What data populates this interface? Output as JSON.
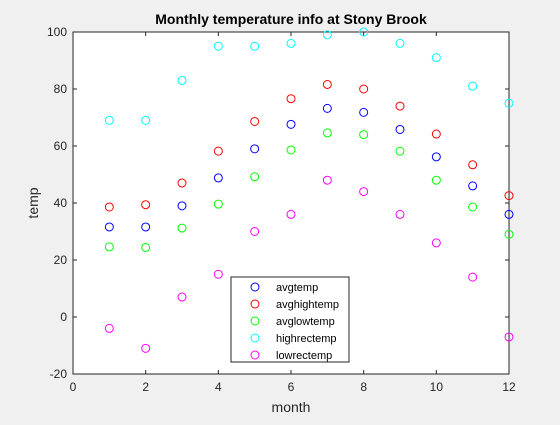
{
  "chart_data": {
    "type": "scatter",
    "title": "Monthly temperature info at Stony Brook",
    "xlabel": "month",
    "ylabel": "temp",
    "xlim": [
      0,
      12
    ],
    "ylim": [
      -20,
      100
    ],
    "xticks": [
      0,
      2,
      4,
      6,
      8,
      10,
      12
    ],
    "yticks": [
      -20,
      0,
      20,
      40,
      60,
      80,
      100
    ],
    "grid": false,
    "legend_position": "bottom-center",
    "x": [
      1,
      2,
      3,
      4,
      5,
      6,
      7,
      8,
      9,
      10,
      11,
      12
    ],
    "series": [
      {
        "name": "avgtemp",
        "color": "#0000ff",
        "values": [
          31.6,
          31.6,
          39,
          48.8,
          59,
          67.6,
          73.2,
          71.8,
          65.8,
          56.2,
          46,
          36
        ]
      },
      {
        "name": "avghightemp",
        "color": "#ff0000",
        "values": [
          38.6,
          39.4,
          47,
          58.2,
          68.6,
          76.6,
          81.6,
          80,
          74,
          64.2,
          53.4,
          42.6
        ]
      },
      {
        "name": "avglowtemp",
        "color": "#00ff00",
        "values": [
          24.6,
          24.4,
          31.2,
          39.6,
          49.2,
          58.6,
          64.6,
          64,
          58.2,
          48,
          38.6,
          29
        ]
      },
      {
        "name": "highrectemp",
        "color": "#00ffff",
        "values": [
          69,
          69,
          83,
          95,
          95,
          96,
          99,
          100,
          96,
          91,
          81,
          75
        ]
      },
      {
        "name": "lowrectemp",
        "color": "#ff00ff",
        "values": [
          -4,
          -11,
          7,
          15,
          30,
          36,
          48,
          44,
          36,
          26,
          14,
          -7
        ]
      }
    ]
  }
}
